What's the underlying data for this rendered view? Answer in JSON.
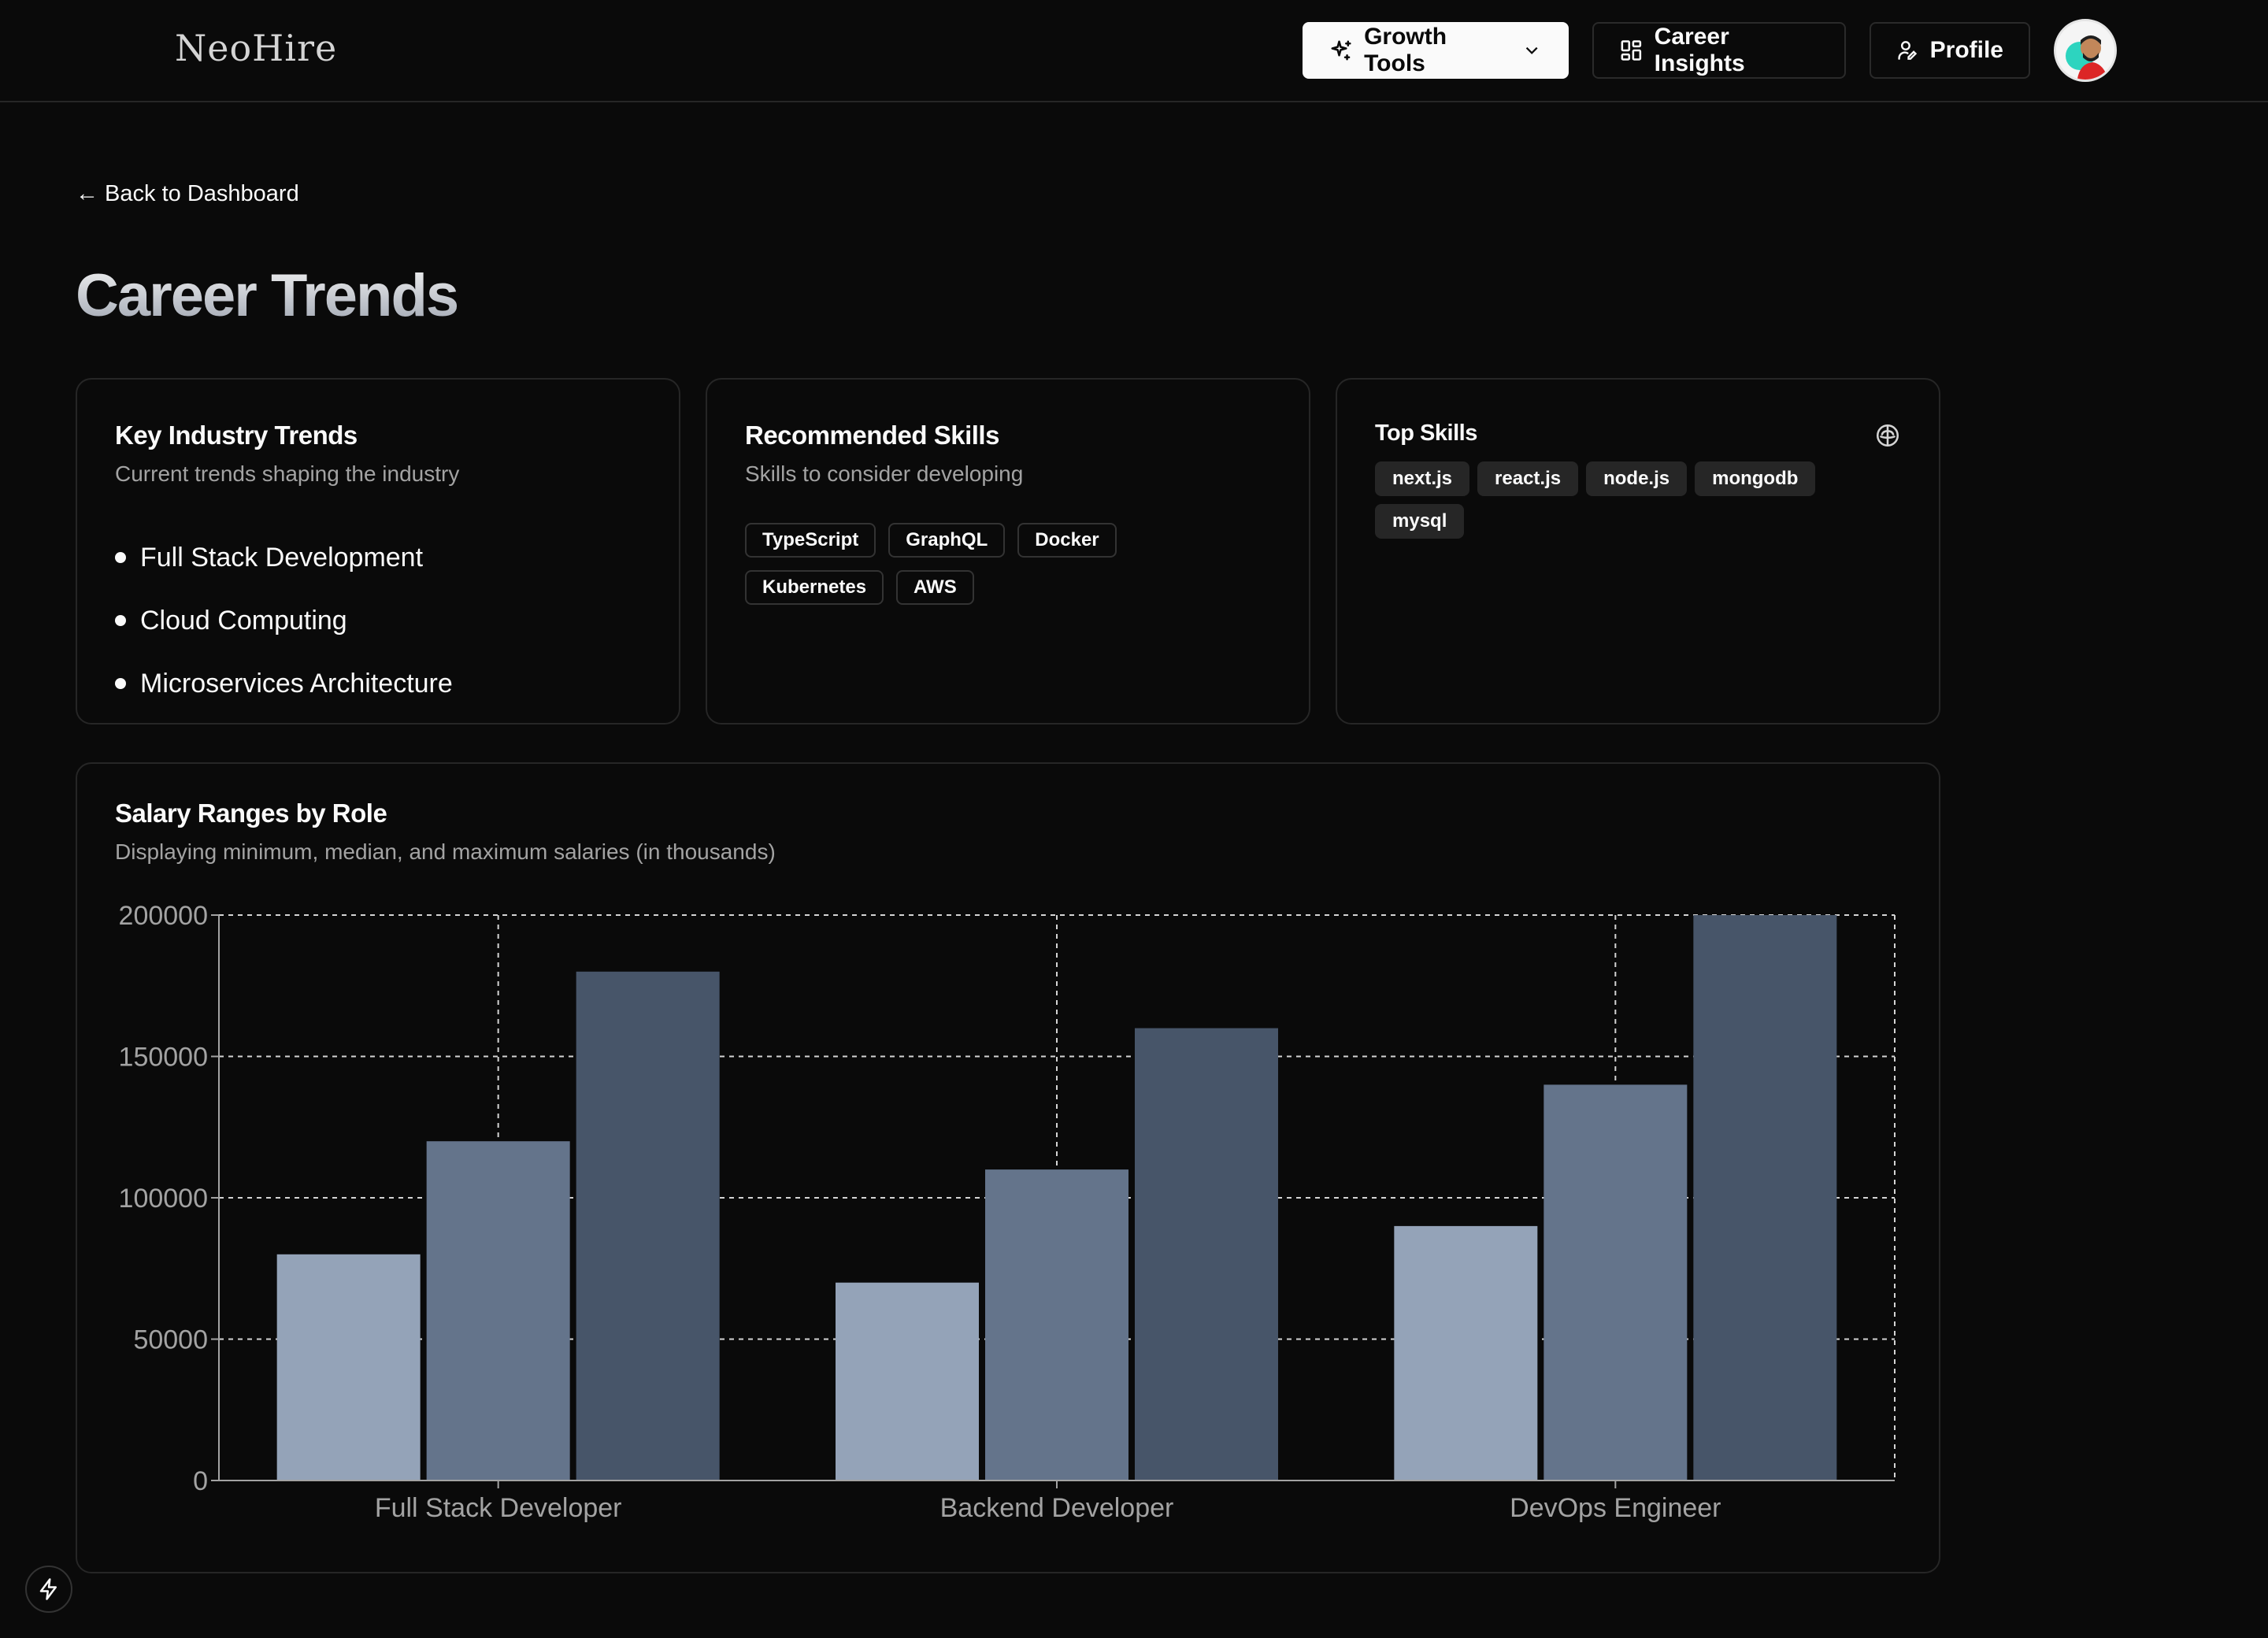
{
  "header": {
    "logo": "NeoHire",
    "growth_tools": "Growth Tools",
    "career_insights": "Career Insights",
    "profile": "Profile"
  },
  "back_link": "← Back to Dashboard",
  "page_title": "Career Trends",
  "trends_card": {
    "title": "Key Industry Trends",
    "description": "Current trends shaping the industry",
    "items": [
      "Full Stack Development",
      "Cloud Computing",
      "Microservices Architecture"
    ]
  },
  "skills_card": {
    "title": "Recommended Skills",
    "description": "Skills to consider developing",
    "skills": [
      "TypeScript",
      "GraphQL",
      "Docker",
      "Kubernetes",
      "AWS"
    ]
  },
  "top_skills_card": {
    "title": "Top Skills",
    "skills": [
      "next.js",
      "react.js",
      "node.js",
      "mongodb",
      "mysql"
    ]
  },
  "salary_card": {
    "title": "Salary Ranges by Role",
    "description": "Displaying minimum, median, and maximum salaries (in thousands)"
  },
  "chart_data": {
    "type": "bar",
    "categories": [
      "Full Stack Developer",
      "Backend Developer",
      "DevOps Engineer"
    ],
    "series": [
      {
        "values": [
          80000,
          70000,
          90000
        ],
        "color": "#94a3b8"
      },
      {
        "values": [
          120000,
          110000,
          140000
        ],
        "color": "#64748b"
      },
      {
        "values": [
          180000,
          160000,
          200000
        ],
        "color": "#475569"
      }
    ],
    "ylim": [
      0,
      200000
    ],
    "yticks": [
      0,
      50000,
      100000,
      150000,
      200000
    ],
    "grid": true,
    "xlabel": "",
    "ylabel": ""
  }
}
